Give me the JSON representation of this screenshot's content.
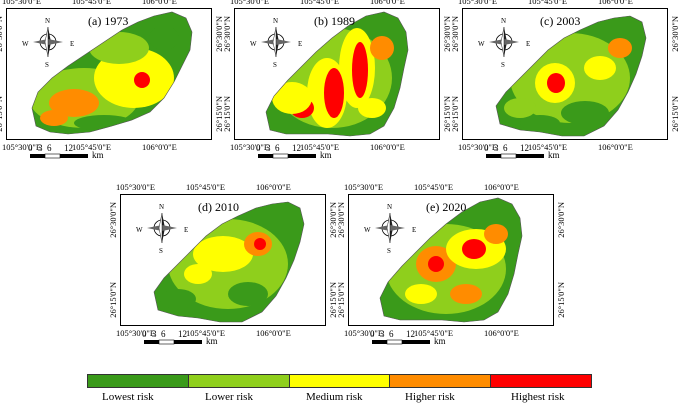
{
  "panels": [
    {
      "title": "(a) 1973",
      "ticks_top": [
        "105°30'0\"E",
        "105°45'0\"E",
        "106°0'0\"E"
      ],
      "ticks_bottom": [
        "105°30'0\"E",
        "105°45'0\"E",
        "106°0'0\"E"
      ],
      "ticks_left": [
        "26°30'0\"N",
        "26°15'0\"N"
      ],
      "ticks_right": [
        "26°30'0\"N",
        "26°15'0\"N"
      ]
    },
    {
      "title": "(b) 1989",
      "ticks_top": [
        "105°30'0\"E",
        "105°45'0\"E",
        "106°0'0\"E"
      ],
      "ticks_bottom": [
        "105°30'0\"E",
        "105°45'0\"E",
        "106°0'0\"E"
      ],
      "ticks_left": [
        "26°30'0\"N",
        "26°15'0\"N"
      ],
      "ticks_right": [
        "26°30'0\"N",
        "26°15'0\"N"
      ]
    },
    {
      "title": "(c) 2003",
      "ticks_top": [
        "105°30'0\"E",
        "105°45'0\"E",
        "106°0'0\"E"
      ],
      "ticks_bottom": [
        "105°30'0\"E",
        "105°45'0\"E",
        "106°0'0\"E"
      ],
      "ticks_left": [
        "26°30'0\"N",
        "26°15'0\"N"
      ],
      "ticks_right": [
        "26°30'0\"N",
        "26°15'0\"N"
      ]
    },
    {
      "title": "(d) 2010",
      "ticks_top": [
        "105°30'0\"E",
        "105°45'0\"E",
        "106°0'0\"E"
      ],
      "ticks_bottom": [
        "105°30'0\"E",
        "105°45'0\"E",
        "106°0'0\"E"
      ],
      "ticks_left": [
        "26°30'0\"N",
        "26°15'0\"N"
      ],
      "ticks_right": [
        "26°30'0\"N",
        "26°15'0\"N"
      ]
    },
    {
      "title": "(e) 2020",
      "ticks_top": [
        "105°30'0\"E",
        "105°45'0\"E",
        "106°0'0\"E"
      ],
      "ticks_bottom": [
        "105°30'0\"E",
        "105°45'0\"E",
        "106°0'0\"E"
      ],
      "ticks_left": [
        "26°30'0\"N",
        "26°15'0\"N"
      ],
      "ticks_right": [
        "26°30'0\"N",
        "26°15'0\"N"
      ]
    }
  ],
  "scale_bar": {
    "labels": [
      "0",
      "3",
      "6",
      "12"
    ],
    "unit": "km"
  },
  "compass": {
    "n": "N",
    "s": "S",
    "e": "E",
    "w": "W"
  },
  "legend": [
    {
      "label": "Lowest risk",
      "color": "#3a9a1a"
    },
    {
      "label": "Lower risk",
      "color": "#8fcf1c"
    },
    {
      "label": "Medium risk",
      "color": "#ffff00"
    },
    {
      "label": "Higher risk",
      "color": "#ff8c00"
    },
    {
      "label": "Highest risk",
      "color": "#ff0000"
    }
  ]
}
